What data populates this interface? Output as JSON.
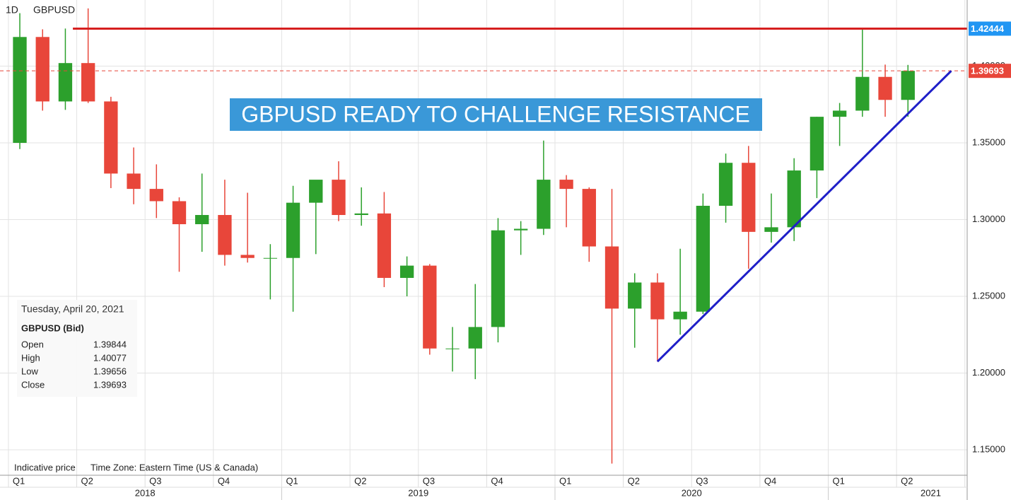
{
  "chart_data": {
    "type": "candlestick",
    "interval": "1D",
    "symbol": "GBPUSD",
    "title": "GBPUSD READY TO CHALLENGE RESISTANCE",
    "footer": [
      "Indicative price",
      "Time Zone: Eastern Time (US & Canada)"
    ],
    "up_color": "#2ca02c",
    "down_color": "#e8463a",
    "grid": true,
    "xlim": [
      -0.37,
      42.1
    ],
    "ylim": [
      1.1334,
      1.4431
    ],
    "yticks": [
      {
        "value": 1.15,
        "label": "1.15000"
      },
      {
        "value": 1.2,
        "label": "1.20000"
      },
      {
        "value": 1.25,
        "label": "1.25000"
      },
      {
        "value": 1.3,
        "label": "1.30000"
      },
      {
        "value": 1.35,
        "label": "1.35000"
      },
      {
        "value": 1.4,
        "label": "1.40000"
      }
    ],
    "xticks": [
      {
        "value": 0,
        "label": "Q1"
      },
      {
        "value": 3,
        "label": "Q2"
      },
      {
        "value": 6,
        "label": "Q3"
      },
      {
        "value": 9,
        "label": "Q4"
      },
      {
        "value": 12,
        "label": "Q1"
      },
      {
        "value": 15,
        "label": "Q2"
      },
      {
        "value": 18,
        "label": "Q3"
      },
      {
        "value": 21,
        "label": "Q4"
      },
      {
        "value": 24,
        "label": "Q1"
      },
      {
        "value": 27,
        "label": "Q2"
      },
      {
        "value": 30,
        "label": "Q3"
      },
      {
        "value": 33,
        "label": "Q4"
      },
      {
        "value": 36,
        "label": "Q1"
      },
      {
        "value": 39,
        "label": "Q2"
      },
      {
        "value": 42,
        "label": "Q3"
      }
    ],
    "year_labels": [
      {
        "value": 6,
        "label": "2018"
      },
      {
        "value": 18,
        "label": "2019"
      },
      {
        "value": 30,
        "label": "2020"
      },
      {
        "value": 40.5,
        "label": "2021"
      }
    ],
    "year_dividers": [
      12,
      24,
      36
    ],
    "candles": {
      "x": [
        0.5,
        1.5,
        2.5,
        3.5,
        4.5,
        5.5,
        6.5,
        7.5,
        8.5,
        9.5,
        10.5,
        11.5,
        12.5,
        13.5,
        14.5,
        15.5,
        16.5,
        17.5,
        18.5,
        19.5,
        20.5,
        21.5,
        22.5,
        23.5,
        24.5,
        25.5,
        26.5,
        27.5,
        28.5,
        29.5,
        30.5,
        31.5,
        32.5,
        33.5,
        34.5,
        35.5,
        36.5,
        37.5,
        38.5,
        39.5
      ],
      "open": [
        1.35,
        1.419,
        1.377,
        1.402,
        1.377,
        1.33,
        1.32,
        1.312,
        1.297,
        1.303,
        1.277,
        1.275,
        1.275,
        1.311,
        1.326,
        1.303,
        1.304,
        1.262,
        1.27,
        1.216,
        1.216,
        1.23,
        1.293,
        1.294,
        1.326,
        1.32,
        1.2825,
        1.242,
        1.259,
        1.235,
        1.24,
        1.309,
        1.337,
        1.292,
        1.295,
        1.332,
        1.367,
        1.371,
        1.393,
        1.378
      ],
      "high": [
        1.4345,
        1.424,
        1.4245,
        1.4376,
        1.38,
        1.347,
        1.336,
        1.3145,
        1.33,
        1.326,
        1.3175,
        1.284,
        1.322,
        1.324,
        1.338,
        1.321,
        1.318,
        1.276,
        1.271,
        1.23,
        1.258,
        1.301,
        1.299,
        1.3515,
        1.329,
        1.321,
        1.32,
        1.265,
        1.265,
        1.281,
        1.317,
        1.343,
        1.348,
        1.317,
        1.34,
        1.367,
        1.376,
        1.4244,
        1.401,
        1.4008
      ],
      "low": [
        1.346,
        1.371,
        1.3715,
        1.376,
        1.3205,
        1.31,
        1.301,
        1.266,
        1.279,
        1.27,
        1.272,
        1.248,
        1.24,
        1.2775,
        1.299,
        1.296,
        1.256,
        1.25,
        1.212,
        1.201,
        1.196,
        1.22,
        1.277,
        1.29,
        1.295,
        1.2725,
        1.141,
        1.2165,
        1.2075,
        1.225,
        1.2385,
        1.298,
        1.268,
        1.285,
        1.286,
        1.314,
        1.348,
        1.367,
        1.367,
        1.367
      ],
      "close": [
        1.419,
        1.377,
        1.402,
        1.377,
        1.33,
        1.32,
        1.312,
        1.297,
        1.303,
        1.277,
        1.275,
        1.275,
        1.311,
        1.326,
        1.303,
        1.304,
        1.262,
        1.27,
        1.216,
        1.216,
        1.23,
        1.293,
        1.294,
        1.326,
        1.32,
        1.2825,
        1.242,
        1.259,
        1.235,
        1.24,
        1.309,
        1.337,
        1.292,
        1.295,
        1.332,
        1.367,
        1.371,
        1.393,
        1.378,
        1.39693
      ]
    },
    "resistance": {
      "value": 1.42444,
      "label": "1.42444",
      "start": 2.83,
      "color": "#d61f1f",
      "label_color": "#2196f3"
    },
    "last_price": {
      "value": 1.39693,
      "label": "1.39693",
      "color": "#e8463a"
    },
    "trendline": {
      "x": [
        28.5,
        41.4
      ],
      "y": [
        1.2075,
        1.3969
      ],
      "color": "#1f1fc8"
    },
    "info_box": {
      "date": "Tuesday, April 20, 2021",
      "heading": "GBPUSD (Bid)",
      "rows": [
        [
          "Open",
          1.39844
        ],
        [
          "High",
          1.40077
        ],
        [
          "Low",
          1.39656
        ],
        [
          "Close",
          1.39693
        ]
      ]
    }
  }
}
